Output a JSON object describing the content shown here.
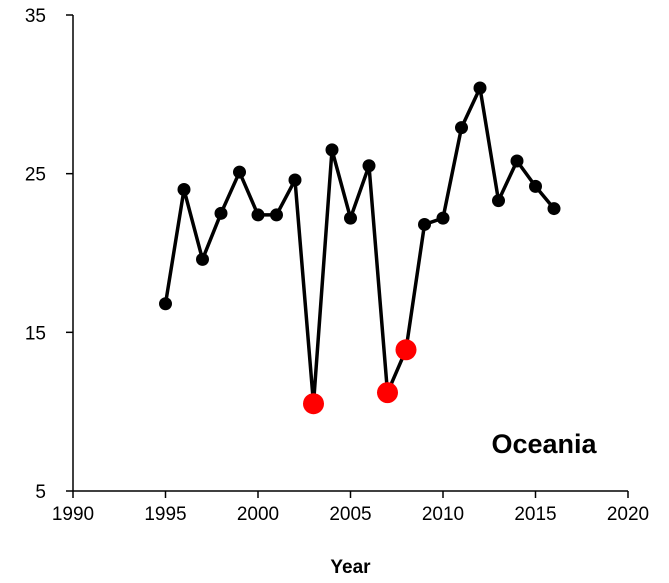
{
  "chart_data": {
    "type": "line",
    "title": "",
    "xlabel": "Year",
    "ylabel": "",
    "xlim": [
      1990,
      2020
    ],
    "ylim": [
      5,
      35
    ],
    "x_ticks": [
      1990,
      1995,
      2000,
      2005,
      2010,
      2015,
      2020
    ],
    "y_ticks": [
      5,
      15,
      25,
      35
    ],
    "grid": false,
    "annotation": "Oceania",
    "line_color": "#000000",
    "highlight_color": "#ff0000",
    "series": [
      {
        "x": [
          1995,
          1996,
          1997,
          1998,
          1999,
          2000,
          2001,
          2002,
          2003,
          2004,
          2005,
          2006,
          2007,
          2008,
          2009,
          2010,
          2011,
          2012,
          2013,
          2014,
          2015,
          2016
        ],
        "y": [
          16.8,
          24.0,
          19.6,
          22.5,
          25.1,
          22.4,
          22.4,
          24.6,
          10.5,
          26.5,
          22.2,
          25.5,
          11.2,
          13.9,
          21.8,
          22.2,
          27.9,
          30.4,
          23.3,
          25.8,
          24.2,
          22.8
        ]
      }
    ],
    "highlighted_points": [
      {
        "x": 2003,
        "y": 10.5
      },
      {
        "x": 2007,
        "y": 11.2
      },
      {
        "x": 2008,
        "y": 13.9
      }
    ]
  }
}
